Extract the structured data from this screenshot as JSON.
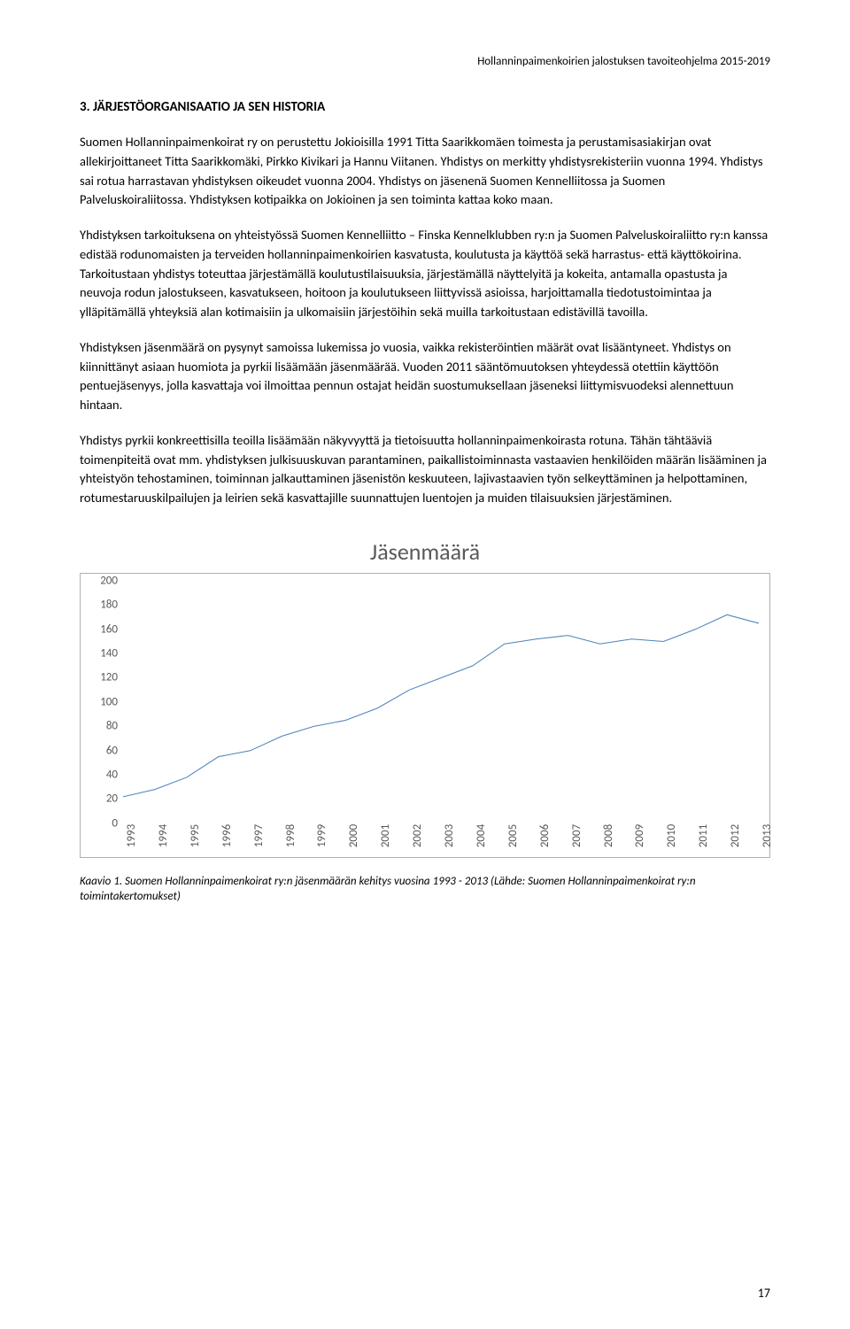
{
  "header": "Hollanninpaimenkoirien jalostuksen tavoiteohjelma 2015-2019",
  "section_title": "3. JÄRJESTÖORGANISAATIO JA SEN HISTORIA",
  "paragraphs": [
    "Suomen Hollanninpaimenkoirat ry on perustettu Jokioisilla 1991 Titta Saarikkomäen toimesta ja perustamisasiakirjan ovat allekirjoittaneet Titta Saarikkomäki, Pirkko Kivikari ja Hannu Viitanen. Yhdistys on merkitty yhdistysrekisteriin vuonna 1994. Yhdistys sai rotua harrastavan yhdistyksen oikeudet vuonna 2004. Yhdistys on jäsenenä Suomen Kennelliitossa ja Suomen Palveluskoiraliitossa. Yhdistyksen kotipaikka on Jokioinen ja sen toiminta kattaa koko maan.",
    "Yhdistyksen tarkoituksena on yhteistyössä Suomen Kennelliitto – Finska Kennelklubben ry:n ja Suomen Palveluskoiraliitto ry:n kanssa edistää rodunomaisten ja terveiden hollanninpaimenkoirien kasvatusta, koulutusta ja käyttöä sekä harrastus- että käyttökoirina. Tarkoitustaan yhdistys toteuttaa järjestämällä koulutustilaisuuksia, järjestämällä näyttelyitä ja kokeita, antamalla opastusta ja neuvoja rodun jalostukseen, kasvatukseen, hoitoon ja koulutukseen liittyvissä asioissa, harjoittamalla tiedotustoimintaa ja ylläpitämällä yhteyksiä alan kotimaisiin ja ulkomaisiin järjestöihin sekä muilla tarkoitustaan edistävillä tavoilla.",
    "Yhdistyksen jäsenmäärä on pysynyt samoissa lukemissa jo vuosia, vaikka rekisteröintien määrät ovat lisääntyneet. Yhdistys on kiinnittänyt asiaan huomiota ja pyrkii lisäämään jäsenmäärää. Vuoden 2011 sääntömuutoksen yhteydessä otettiin käyttöön pentuejäsenyys, jolla kasvattaja voi ilmoittaa pennun ostajat heidän suostumuksellaan jäseneksi liittymisvuodeksi alennettuun hintaan.",
    "Yhdistys pyrkii konkreettisilla teoilla lisäämään näkyvyyttä ja tietoisuutta hollanninpaimenkoirasta rotuna. Tähän tähtääviä toimenpiteitä ovat mm. yhdistyksen julkisuuskuvan parantaminen, paikallistoiminnasta vastaavien henkilöiden määrän lisääminen ja yhteistyön tehostaminen, toiminnan jalkauttaminen jäsenistön keskuuteen, lajivastaavien työn selkeyttäminen ja helpottaminen, rotumestaruuskilpailujen ja leirien sekä kasvattajille suunnattujen luentojen ja muiden tilaisuuksien järjestäminen."
  ],
  "chart": {
    "title": "Jäsenmäärä",
    "type": "line",
    "line_color": "#4f81bd",
    "line_width": 3,
    "background_color": "#ffffff",
    "axis_color": "#595959",
    "font_color": "#595959",
    "ylim": [
      0,
      200
    ],
    "ytick_step": 20,
    "yticks": [
      0,
      20,
      40,
      60,
      80,
      100,
      120,
      140,
      160,
      180,
      200
    ],
    "xlabels": [
      "1993",
      "1994",
      "1995",
      "1996",
      "1997",
      "1998",
      "1999",
      "2000",
      "2001",
      "2002",
      "2003",
      "2004",
      "2005",
      "2006",
      "2007",
      "2008",
      "2009",
      "2010",
      "2011",
      "2012",
      "2013"
    ],
    "values": [
      22,
      28,
      38,
      55,
      60,
      72,
      80,
      85,
      95,
      110,
      120,
      130,
      148,
      152,
      155,
      148,
      152,
      150,
      160,
      172,
      165
    ]
  },
  "caption": "Kaavio 1. Suomen Hollanninpaimenkoirat ry:n jäsenmäärän kehitys vuosina 1993 - 2013 (Lähde: Suomen Hollanninpaimenkoirat ry:n toimintakertomukset)",
  "page_number": "17"
}
